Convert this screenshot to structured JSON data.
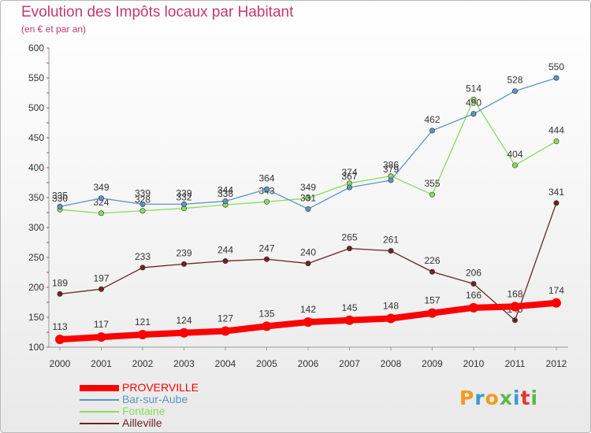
{
  "header": {
    "title": "Evolution des Impôts locaux par Habitant",
    "subtitle": "(en € et par an)"
  },
  "legend": [
    {
      "label": "PROVERVILLE",
      "color": "#ff0000"
    },
    {
      "label": "Bar-sur-Aube",
      "color": "#5d94c6"
    },
    {
      "label": "Fontaine",
      "color": "#88dd5a"
    },
    {
      "label": "Ailleville",
      "color": "#6b2424"
    }
  ],
  "logo": {
    "text": "Proxiti"
  },
  "chart_data": {
    "type": "line",
    "title": "Evolution des Impôts locaux par Habitant",
    "subtitle": "(en € et par an)",
    "xlabel": "",
    "ylabel": "",
    "x": [
      "2000",
      "2001",
      "2002",
      "2003",
      "2004",
      "2005",
      "2006",
      "2007",
      "2008",
      "2009",
      "2010",
      "2011",
      "2012"
    ],
    "ylim": [
      100,
      600
    ],
    "yticks": [
      "100",
      "150",
      "200",
      "250",
      "300",
      "350",
      "400",
      "450",
      "500",
      "550",
      "600"
    ],
    "grid": false,
    "legend_position": "bottom-left",
    "series": [
      {
        "name": "PROVERVILLE",
        "color": "#ff0000",
        "values": [
          113,
          117,
          121,
          124,
          127,
          135,
          142,
          145,
          148,
          157,
          166,
          168,
          174
        ],
        "labels": [
          "113",
          "117",
          "121",
          "124",
          "127",
          "135",
          "142",
          "145",
          "148",
          "157",
          "166",
          "168",
          "174"
        ]
      },
      {
        "name": "Bar-sur-Aube",
        "color": "#5d94c6",
        "values": [
          335,
          349,
          339,
          339,
          344,
          364,
          331,
          367,
          379,
          462,
          490,
          528,
          550
        ],
        "labels": [
          "335",
          "349",
          "339",
          "339",
          "344",
          "364",
          "331",
          "367",
          "379",
          "462",
          "490",
          "528",
          "550"
        ]
      },
      {
        "name": "Fontaine",
        "color": "#88dd5a",
        "values": [
          330,
          324,
          328,
          332,
          338,
          343,
          349,
          374,
          386,
          355,
          514,
          404,
          444
        ],
        "labels": [
          "330",
          "324",
          "328",
          "332",
          "338",
          "343",
          "349",
          "374",
          "386",
          "355",
          "514",
          "404",
          "444"
        ]
      },
      {
        "name": "Ailleville",
        "color": "#6b2424",
        "values": [
          189,
          197,
          233,
          239,
          244,
          247,
          240,
          265,
          261,
          226,
          206,
          145,
          341
        ],
        "labels": [
          "189",
          "197",
          "233",
          "239",
          "244",
          "247",
          "240",
          "265",
          "261",
          "226",
          "206",
          "145",
          "341"
        ]
      }
    ]
  }
}
